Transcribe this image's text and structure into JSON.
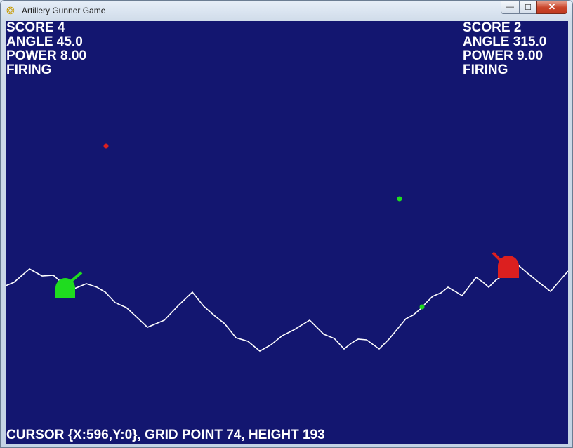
{
  "window": {
    "title": "Artillery Gunner Game",
    "icon": "python-icon",
    "controls": {
      "minimize": "—",
      "maximize": "☐",
      "close": "✕"
    }
  },
  "player_left": {
    "score_label": "SCORE 4",
    "angle_label": "ANGLE 45.0",
    "power_label": "POWER 8.00",
    "state_label": "FIRING",
    "color": "#1fdc1f"
  },
  "player_right": {
    "score_label": "SCORE 2",
    "angle_label": "ANGLE 315.0",
    "power_label": "POWER 9.00",
    "state_label": "FIRING",
    "color": "#dc1f1f"
  },
  "status": {
    "cursor_text": "CURSOR {X:596,Y:0}, GRID POINT 74, HEIGHT 193"
  },
  "colors": {
    "sky": "#131670",
    "terrain_line": "#ffffff"
  }
}
